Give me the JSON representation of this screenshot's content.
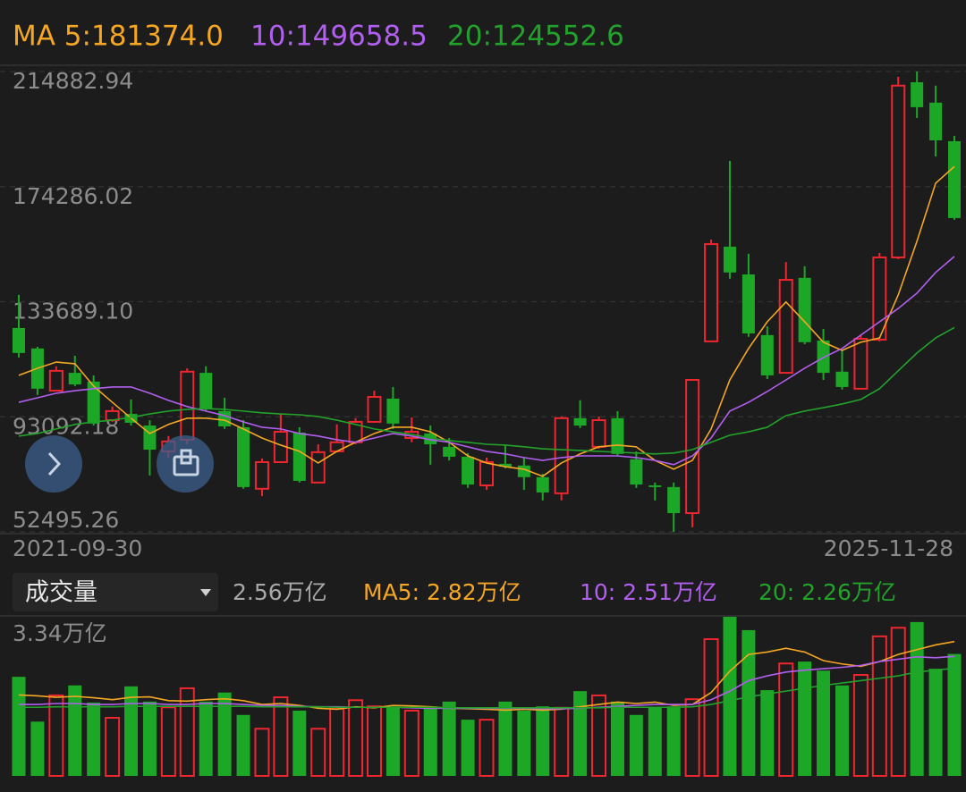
{
  "chart_data": [
    {
      "type": "candlestick",
      "header": [
        "MA 5:181374.0",
        "10:149658.5",
        "20:124552.6"
      ],
      "categories": [
        "2021-09-30",
        null,
        null,
        null,
        null,
        null,
        null,
        null,
        null,
        null,
        null,
        null,
        null,
        null,
        null,
        null,
        null,
        null,
        null,
        null,
        null,
        null,
        null,
        null,
        null,
        null,
        null,
        null,
        null,
        null,
        null,
        null,
        null,
        null,
        null,
        null,
        null,
        null,
        null,
        null,
        null,
        null,
        null,
        null,
        null,
        null,
        null,
        null,
        null,
        null,
        "2025-11-28"
      ],
      "open": [
        124400,
        117200,
        102300,
        108600,
        105500,
        91900,
        94100,
        90000,
        80900,
        85000,
        108600,
        95100,
        89400,
        67700,
        77100,
        87500,
        69900,
        80900,
        84100,
        91300,
        99500,
        85600,
        87200,
        82500,
        79000,
        68900,
        76500,
        75900,
        71800,
        66100,
        92600,
        82500,
        92600,
        78100,
        68900,
        68300,
        59100,
        119700,
        153100,
        143300,
        121900,
        108600,
        142100,
        120000,
        109000,
        103000,
        120300,
        149300,
        211100,
        203900,
        190300
      ],
      "high": [
        136100,
        117800,
        110900,
        114600,
        107700,
        96700,
        99200,
        91900,
        86300,
        110200,
        110900,
        99800,
        91900,
        78400,
        94100,
        89400,
        83400,
        90400,
        92600,
        102300,
        103600,
        92900,
        90000,
        85600,
        80300,
        78700,
        83100,
        78700,
        73000,
        93200,
        98900,
        93200,
        95100,
        80900,
        69900,
        69900,
        106400,
        155600,
        183400,
        150600,
        125000,
        147700,
        146200,
        124100,
        116500,
        121900,
        150900,
        213000,
        214882.94,
        209900,
        192200
      ],
      "low": [
        114000,
        100800,
        102300,
        103900,
        90000,
        91300,
        90000,
        72400,
        78700,
        83400,
        95100,
        88800,
        67700,
        65100,
        76800,
        69900,
        69900,
        80600,
        83400,
        91000,
        88800,
        84100,
        76200,
        77700,
        68000,
        67300,
        74900,
        67300,
        63600,
        63600,
        89100,
        81800,
        79300,
        68000,
        63600,
        52495.26,
        54100,
        119400,
        141800,
        121300,
        106400,
        108300,
        118700,
        106100,
        102700,
        102700,
        119700,
        148700,
        198500,
        184900,
        162600
      ],
      "close": [
        115600,
        103000,
        109300,
        104500,
        90700,
        95100,
        91000,
        81500,
        84400,
        109000,
        95700,
        89700,
        68300,
        77100,
        87800,
        70500,
        80600,
        84100,
        91300,
        100100,
        90700,
        87800,
        83400,
        79000,
        69200,
        77100,
        75500,
        71800,
        66400,
        92600,
        90000,
        91900,
        80000,
        69200,
        68300,
        59100,
        106100,
        154000,
        144000,
        122500,
        107700,
        141400,
        119400,
        108600,
        103600,
        120600,
        149300,
        209900,
        202300,
        190600,
        163200
      ],
      "up_color": "#ee2630",
      "down_color": "#1ca826",
      "series": [
        {
          "color": "#f5a623",
          "values": [
            107700,
            110200,
            112400,
            111800,
            103900,
            98200,
            92600,
            87200,
            90400,
            92600,
            92600,
            91900,
            88800,
            85600,
            83100,
            80900,
            76800,
            80900,
            84100,
            87200,
            89400,
            89400,
            87800,
            84100,
            79300,
            76800,
            75500,
            74600,
            72100,
            76800,
            80000,
            82500,
            83100,
            82500,
            77700,
            74600,
            77700,
            88800,
            106100,
            117200,
            126600,
            133600,
            126600,
            119400,
            116500,
            119400,
            120900,
            136100,
            155000,
            175500,
            181374.0
          ]
        },
        {
          "color": "#b25ff0",
          "values": [
            98200,
            99800,
            101400,
            102300,
            103000,
            103600,
            103600,
            101400,
            98900,
            96700,
            95100,
            93500,
            91300,
            89400,
            88800,
            87200,
            86300,
            85000,
            84100,
            85600,
            87200,
            86300,
            85000,
            84100,
            82500,
            80900,
            80000,
            78700,
            77700,
            78700,
            79300,
            79300,
            79300,
            78700,
            77700,
            76200,
            79300,
            85600,
            95100,
            98200,
            102000,
            106100,
            110200,
            114000,
            117200,
            121900,
            126600,
            131300,
            136700,
            144000,
            149658.5
          ]
        },
        {
          "color": "#22a22b",
          "values": [
            86300,
            87200,
            88800,
            90400,
            91300,
            91900,
            92900,
            94100,
            95100,
            95700,
            96000,
            95700,
            95100,
            94500,
            94100,
            93800,
            93200,
            91900,
            90400,
            88800,
            87800,
            86900,
            85600,
            84700,
            84100,
            83400,
            83100,
            82500,
            81800,
            81500,
            81200,
            80900,
            80600,
            80300,
            80000,
            80300,
            81500,
            84100,
            86600,
            87800,
            89400,
            93500,
            95100,
            96300,
            97600,
            99200,
            103000,
            109300,
            115600,
            120900,
            124552.6
          ]
        }
      ],
      "ylim": [
        52495.26,
        214882.94
      ],
      "yticks": [
        214882.94,
        174286.02,
        {
          "value": 133689.1,
          "label": "133689.10"
        },
        93092.18,
        52495.26
      ],
      "grid": true
    },
    {
      "type": "bar",
      "selector": "成交量",
      "header": [
        "2.56万亿",
        "MA5: 2.82万亿",
        "10: 2.51万亿",
        "20: 2.26万亿"
      ],
      "values": [
        2.08,
        1.14,
        1.69,
        1.9,
        1.54,
        1.22,
        1.88,
        1.56,
        1.44,
        1.84,
        1.56,
        1.75,
        1.28,
        0.99,
        1.65,
        1.37,
        0.99,
        1.41,
        1.59,
        1.46,
        1.46,
        1.37,
        1.46,
        1.56,
        1.18,
        1.18,
        1.56,
        1.37,
        1.46,
        1.43,
        1.78,
        1.69,
        1.56,
        1.28,
        1.43,
        1.46,
        1.61,
        2.87,
        3.34,
        3.06,
        1.8,
        2.36,
        2.4,
        2.21,
        1.9,
        2.12,
        2.93,
        3.11,
        3.23,
        2.25,
        2.56
      ],
      "series": [
        {
          "color": "#f5a623",
          "values": [
            1.7,
            1.68,
            1.65,
            1.67,
            1.64,
            1.6,
            1.65,
            1.66,
            1.58,
            1.57,
            1.6,
            1.62,
            1.58,
            1.5,
            1.52,
            1.48,
            1.42,
            1.4,
            1.45,
            1.43,
            1.48,
            1.47,
            1.45,
            1.42,
            1.41,
            1.4,
            1.38,
            1.4,
            1.38,
            1.4,
            1.45,
            1.5,
            1.55,
            1.52,
            1.55,
            1.48,
            1.5,
            1.75,
            2.2,
            2.55,
            2.6,
            2.68,
            2.6,
            2.42,
            2.35,
            2.3,
            2.4,
            2.55,
            2.65,
            2.75,
            2.82
          ]
        },
        {
          "color": "#b25ff0",
          "values": [
            1.5,
            1.5,
            1.52,
            1.52,
            1.5,
            1.5,
            1.52,
            1.52,
            1.5,
            1.5,
            1.52,
            1.52,
            1.5,
            1.48,
            1.48,
            1.46,
            1.45,
            1.45,
            1.44,
            1.44,
            1.44,
            1.43,
            1.42,
            1.42,
            1.42,
            1.42,
            1.42,
            1.42,
            1.41,
            1.41,
            1.42,
            1.44,
            1.46,
            1.48,
            1.5,
            1.5,
            1.5,
            1.6,
            1.78,
            2.0,
            2.1,
            2.18,
            2.22,
            2.25,
            2.28,
            2.32,
            2.4,
            2.45,
            2.5,
            2.48,
            2.51
          ]
        },
        {
          "color": "#22a22b",
          "values": [
            1.44,
            1.44,
            1.45,
            1.45,
            1.45,
            1.45,
            1.46,
            1.46,
            1.46,
            1.46,
            1.46,
            1.46,
            1.46,
            1.45,
            1.45,
            1.45,
            1.45,
            1.44,
            1.44,
            1.44,
            1.44,
            1.44,
            1.44,
            1.43,
            1.43,
            1.43,
            1.43,
            1.43,
            1.43,
            1.43,
            1.43,
            1.43,
            1.44,
            1.44,
            1.44,
            1.44,
            1.45,
            1.5,
            1.58,
            1.66,
            1.72,
            1.78,
            1.84,
            1.9,
            1.95,
            2.0,
            2.05,
            2.1,
            2.18,
            2.22,
            2.26
          ]
        }
      ],
      "ylim": [
        0,
        3.34
      ],
      "yticks": [
        {
          "value": 3.34,
          "label": "3.34万亿"
        }
      ]
    }
  ]
}
